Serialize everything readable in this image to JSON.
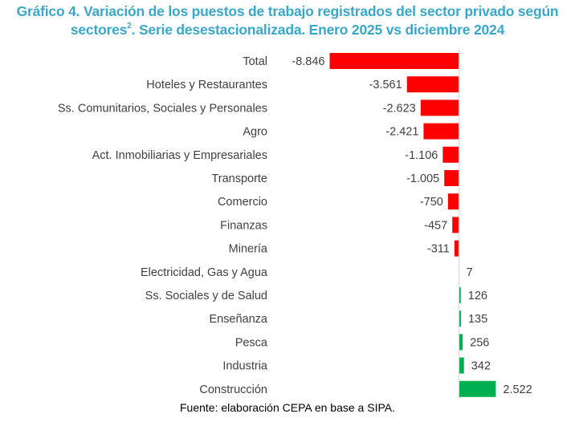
{
  "title": {
    "line1": "Gráfico 4. Variación de los puestos de trabajo registrados del sector privado según",
    "line2_pre": "sectores",
    "line2_sup": "2",
    "line2_post": ". Serie desestacionalizada. Enero 2025 vs diciembre 2024"
  },
  "footer": "Fuente: elaboración CEPA en base a SIPA.",
  "colors": {
    "negative": "#ff0000",
    "positive": "#00b050",
    "axis": "#d9d9d9",
    "title": "#3aa7c8"
  },
  "chart_data": {
    "type": "bar",
    "orientation": "horizontal",
    "title": "Gráfico 4. Variación de los puestos de trabajo registrados del sector privado según sectores². Serie desestacionalizada. Enero 2025 vs diciembre 2024",
    "xlabel": "",
    "ylabel": "",
    "grid": false,
    "legend": "none",
    "categories": [
      "Total",
      "Hoteles y Restaurantes",
      "Ss. Comunitarios, Sociales y Personales",
      "Agro",
      "Act. Inmobiliarias y Empresariales",
      "Transporte",
      "Comercio",
      "Finanzas",
      "Minería",
      "Electricidad, Gas y Agua",
      "Ss. Sociales y de Salud",
      "Enseñanza",
      "Pesca",
      "Industria",
      "Construcción"
    ],
    "values": [
      -8846,
      -3561,
      -2623,
      -2421,
      -1106,
      -1005,
      -750,
      -457,
      -311,
      7,
      126,
      135,
      256,
      342,
      2522
    ],
    "value_labels": [
      "-8.846",
      "-3.561",
      "-2.623",
      "-2.421",
      "-1.106",
      "-1.005",
      "-750",
      "-457",
      "-311",
      "7",
      "126",
      "135",
      "256",
      "342",
      "2.522"
    ],
    "xlim": [
      -9000,
      6400
    ]
  }
}
